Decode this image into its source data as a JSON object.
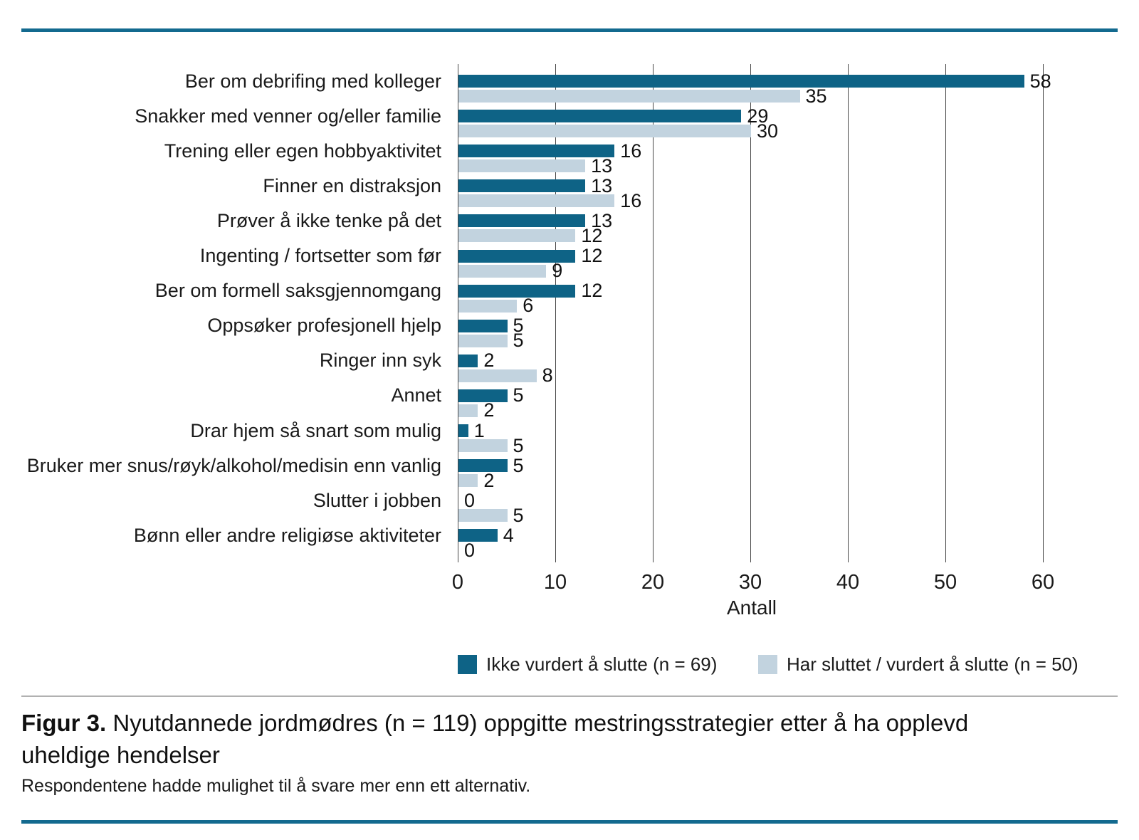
{
  "chart_data": {
    "type": "bar",
    "orientation": "horizontal",
    "xlabel": "Antall",
    "xlim": [
      0,
      60
    ],
    "xticks": [
      0,
      10,
      20,
      30,
      40,
      50,
      60
    ],
    "grid": "vertical",
    "legend_position": "bottom",
    "categories": [
      "Ber om debrifing med kolleger",
      "Snakker med venner og/eller familie",
      "Trening eller egen hobbyaktivitet",
      "Finner en distraksjon",
      "Prøver å ikke tenke på det",
      "Ingenting / fortsetter som før",
      "Ber om formell saksgjennomgang",
      "Oppsøker profesjonell hjelp",
      "Ringer inn syk",
      "Annet",
      "Drar hjem så snart som mulig",
      "Bruker mer snus/røyk/alkohol/medisin enn vanlig",
      "Slutter i jobben",
      "Bønn eller andre religiøse aktiviteter"
    ],
    "series": [
      {
        "name": "Ikke vurdert å slutte (n = 69)",
        "color": "#0e6386",
        "values": [
          58,
          29,
          16,
          13,
          13,
          12,
          12,
          5,
          2,
          5,
          1,
          5,
          0,
          4
        ]
      },
      {
        "name": "Har sluttet / vurdert å slutte (n = 50)",
        "color": "#c2d3df",
        "values": [
          35,
          30,
          13,
          16,
          12,
          9,
          6,
          5,
          8,
          2,
          5,
          2,
          5,
          0
        ]
      }
    ]
  },
  "caption": {
    "label": "Figur 3.",
    "title": "Nyutdannede jordmødres (n = 119) oppgitte mestringsstrategier etter å ha opplevd uheldige hendelser",
    "note": "Respondentene hadde mulighet til å svare mer enn ett alternativ."
  },
  "style": {
    "rule_color": "#136a8f"
  }
}
